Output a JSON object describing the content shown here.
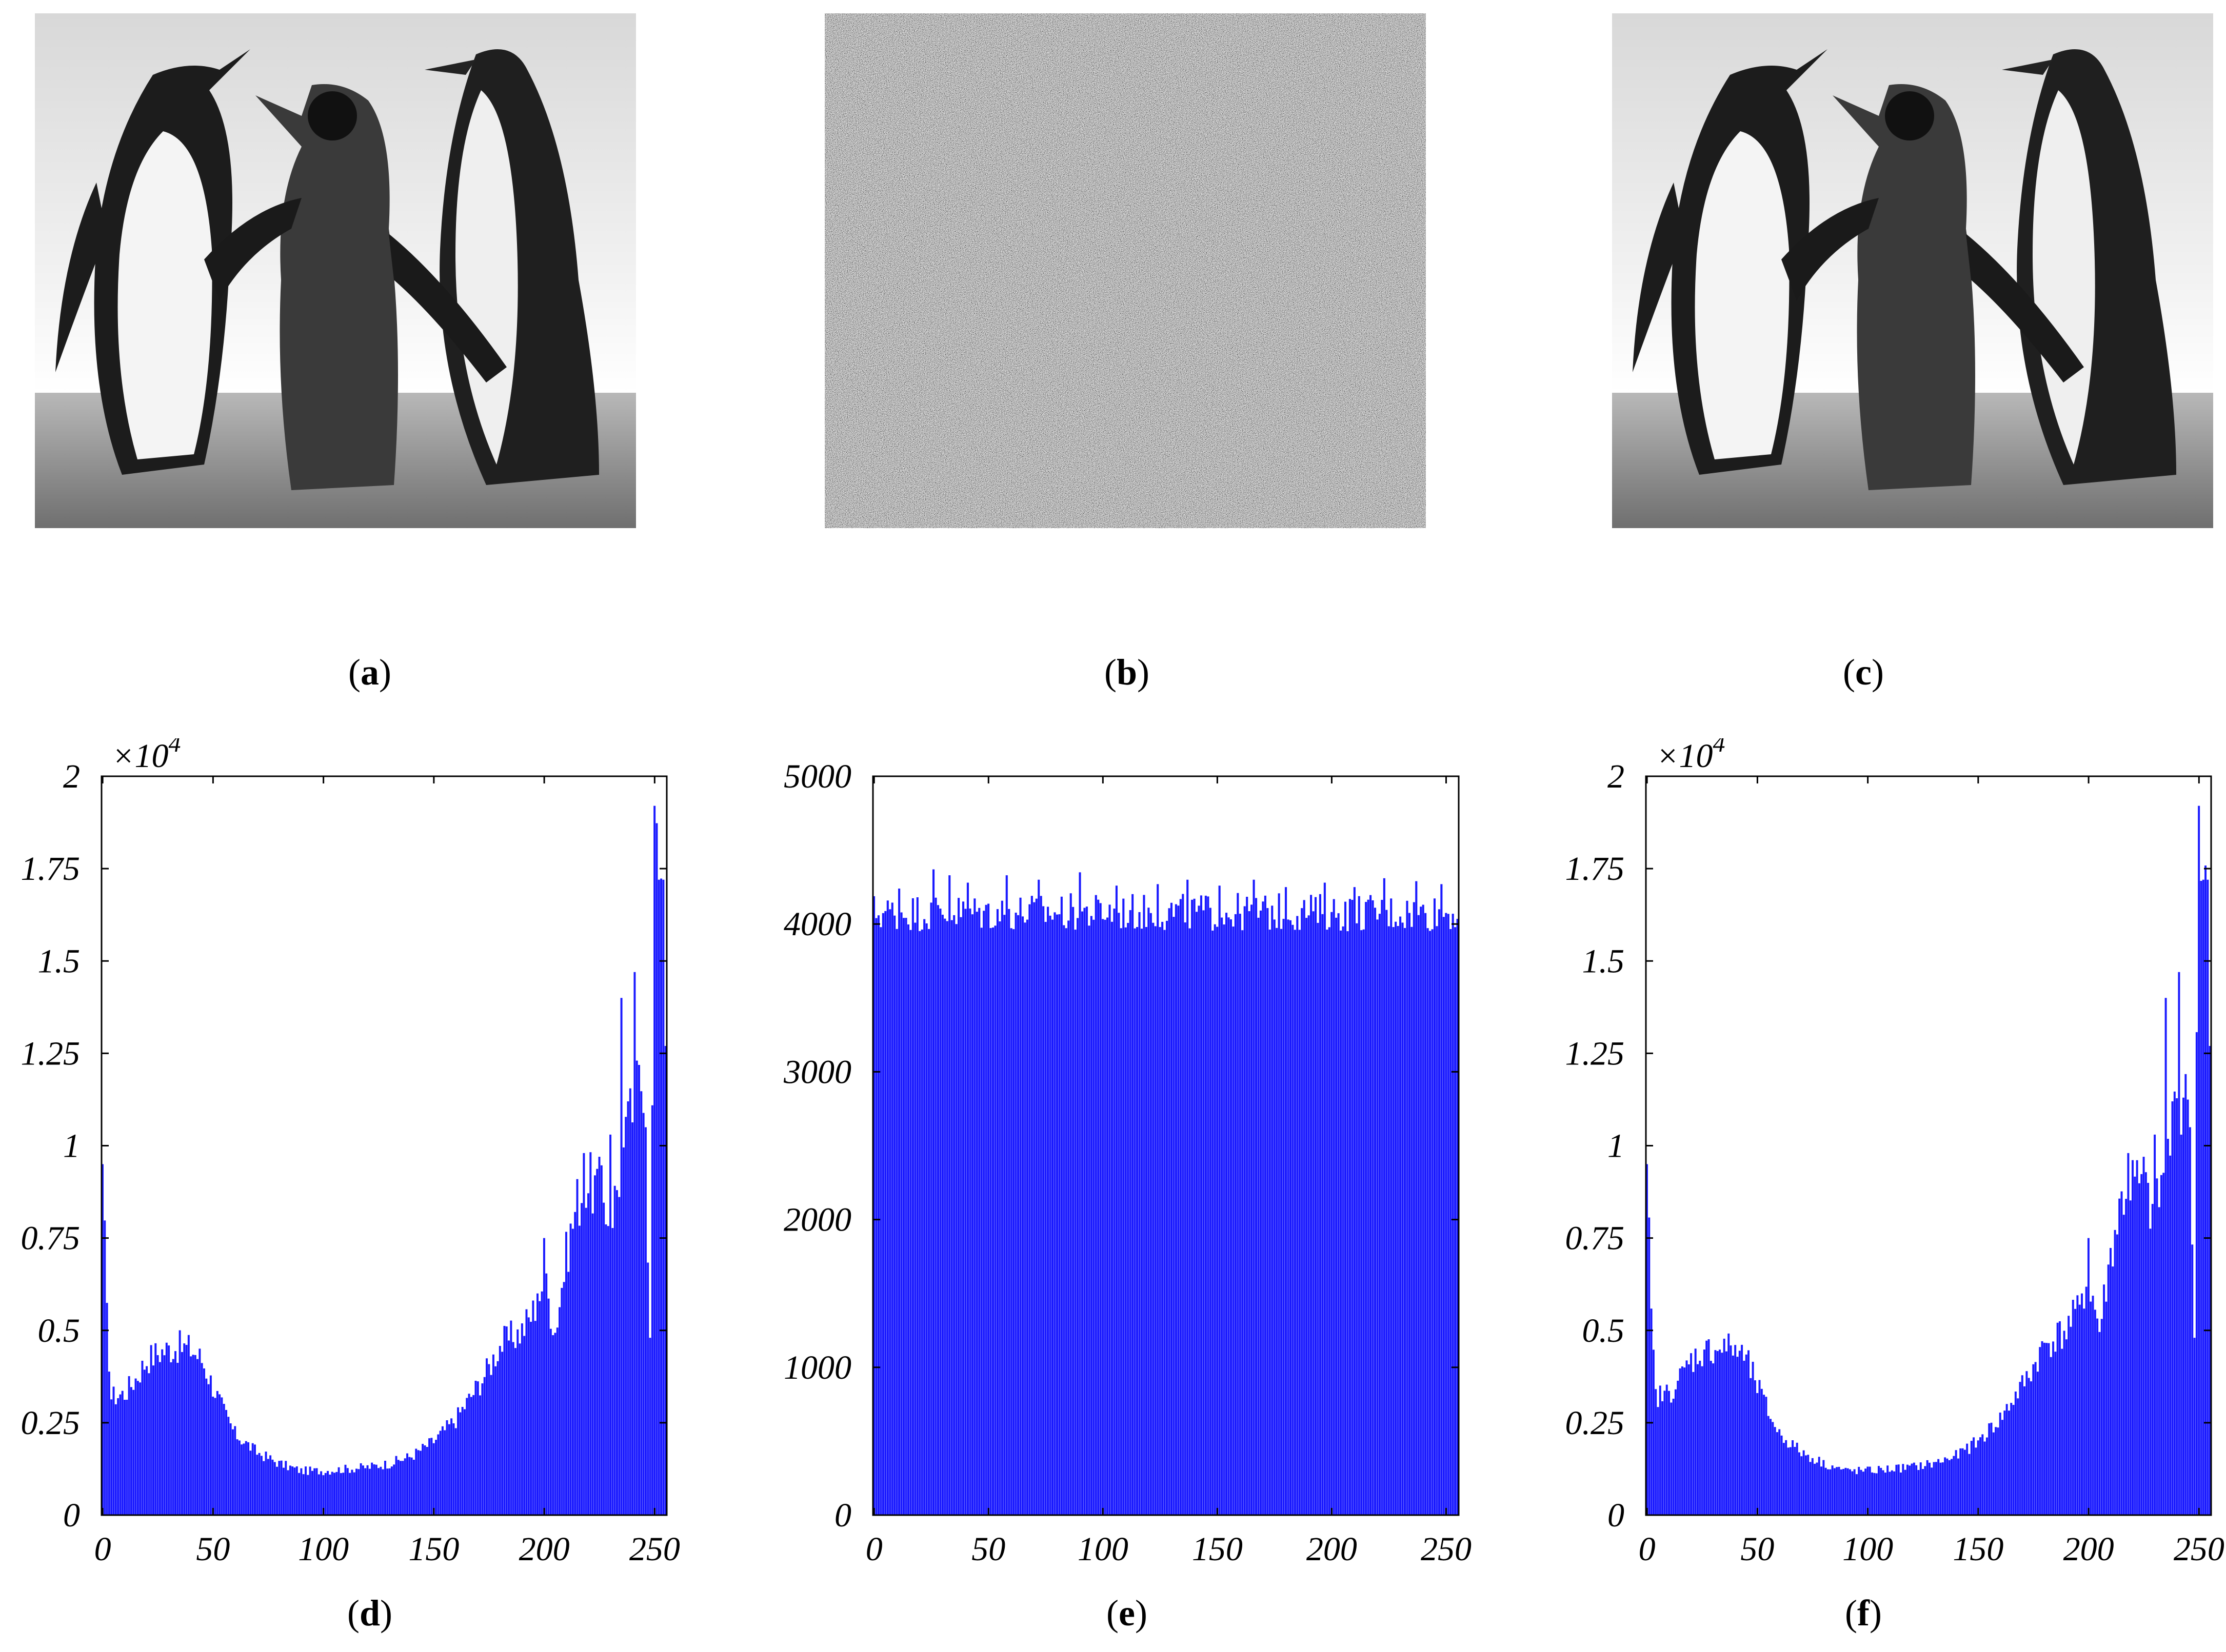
{
  "captions": {
    "a": "a",
    "b": "b",
    "c": "c",
    "d": "d",
    "e": "e",
    "f": "f"
  },
  "images": {
    "a": "grayscale photo of three penguins",
    "b": "encrypted noise image",
    "c": "decrypted grayscale photo of three penguins"
  },
  "colors": {
    "bar": "#1a1aff",
    "axis": "#000000"
  },
  "chart_data": [
    {
      "type": "bar",
      "panel": "d",
      "x_range": [
        0,
        255
      ],
      "ylim": [
        0,
        2
      ],
      "y_multiplier": "×10",
      "y_exponent": "4",
      "x_ticks": [
        "0",
        "50",
        "100",
        "150",
        "200",
        "250"
      ],
      "y_ticks": [
        "0",
        "0.25",
        "0.5",
        "0.75",
        "1",
        "1.25",
        "1.5",
        "1.75",
        "2"
      ],
      "envelope": [
        [
          0,
          0.95
        ],
        [
          2,
          0.53
        ],
        [
          4,
          0.32
        ],
        [
          10,
          0.33
        ],
        [
          15,
          0.37
        ],
        [
          20,
          0.42
        ],
        [
          25,
          0.44
        ],
        [
          30,
          0.45
        ],
        [
          35,
          0.455
        ],
        [
          40,
          0.45
        ],
        [
          45,
          0.42
        ],
        [
          50,
          0.35
        ],
        [
          55,
          0.28
        ],
        [
          60,
          0.22
        ],
        [
          70,
          0.17
        ],
        [
          80,
          0.14
        ],
        [
          90,
          0.12
        ],
        [
          100,
          0.12
        ],
        [
          110,
          0.125
        ],
        [
          120,
          0.13
        ],
        [
          130,
          0.14
        ],
        [
          140,
          0.16
        ],
        [
          150,
          0.2
        ],
        [
          160,
          0.26
        ],
        [
          170,
          0.35
        ],
        [
          175,
          0.4
        ],
        [
          180,
          0.46
        ],
        [
          185,
          0.48
        ],
        [
          190,
          0.5
        ],
        [
          195,
          0.55
        ],
        [
          200,
          0.64
        ],
        [
          205,
          0.5
        ],
        [
          210,
          0.7
        ],
        [
          215,
          0.85
        ],
        [
          220,
          0.9
        ],
        [
          225,
          0.88
        ],
        [
          230,
          0.8
        ],
        [
          235,
          0.95
        ],
        [
          240,
          1.1
        ],
        [
          245,
          1.2
        ],
        [
          248,
          0.5
        ],
        [
          250,
          1.92
        ],
        [
          252,
          1.7
        ],
        [
          254,
          1.72
        ],
        [
          255,
          1.3
        ]
      ],
      "spikes": [
        [
          0,
          0.95
        ],
        [
          197,
          0.6
        ],
        [
          200,
          0.75
        ],
        [
          218,
          0.98
        ],
        [
          225,
          0.97
        ],
        [
          230,
          1.03
        ],
        [
          235,
          1.4
        ],
        [
          238,
          1.12
        ],
        [
          241,
          1.47
        ],
        [
          246,
          1.05
        ],
        [
          248,
          0.48
        ],
        [
          250,
          1.92
        ],
        [
          252,
          1.72
        ],
        [
          254,
          1.72
        ],
        [
          255,
          1.27
        ]
      ]
    },
    {
      "type": "bar",
      "panel": "e",
      "x_range": [
        0,
        255
      ],
      "ylim": [
        0,
        5000
      ],
      "x_ticks": [
        "0",
        "50",
        "100",
        "150",
        "200",
        "250"
      ],
      "y_ticks": [
        "0",
        "1000",
        "2000",
        "3000",
        "4000",
        "5000"
      ],
      "envelope": [
        [
          0,
          4080
        ],
        [
          255,
          4080
        ]
      ],
      "spikes": [
        [
          11,
          4240
        ],
        [
          26,
          4370
        ],
        [
          33,
          4330
        ],
        [
          41,
          4280
        ],
        [
          58,
          4330
        ],
        [
          72,
          4300
        ],
        [
          90,
          4350
        ],
        [
          106,
          4260
        ],
        [
          124,
          4270
        ],
        [
          137,
          4300
        ],
        [
          151,
          4260
        ],
        [
          166,
          4300
        ],
        [
          180,
          4250
        ],
        [
          197,
          4280
        ],
        [
          210,
          4250
        ],
        [
          223,
          4310
        ],
        [
          237,
          4290
        ],
        [
          248,
          4270
        ]
      ]
    },
    {
      "type": "bar",
      "panel": "f",
      "x_range": [
        0,
        255
      ],
      "ylim": [
        0,
        2
      ],
      "y_multiplier": "×10",
      "y_exponent": "4",
      "x_ticks": [
        "0",
        "50",
        "100",
        "150",
        "200",
        "250"
      ],
      "y_ticks": [
        "0",
        "0.25",
        "0.5",
        "0.75",
        "1",
        "1.25",
        "1.5",
        "1.75",
        "2"
      ],
      "envelope": [
        [
          0,
          0.95
        ],
        [
          2,
          0.53
        ],
        [
          4,
          0.32
        ],
        [
          10,
          0.33
        ],
        [
          15,
          0.37
        ],
        [
          20,
          0.42
        ],
        [
          25,
          0.44
        ],
        [
          30,
          0.45
        ],
        [
          35,
          0.455
        ],
        [
          40,
          0.45
        ],
        [
          45,
          0.42
        ],
        [
          50,
          0.35
        ],
        [
          55,
          0.28
        ],
        [
          60,
          0.22
        ],
        [
          70,
          0.17
        ],
        [
          80,
          0.14
        ],
        [
          90,
          0.12
        ],
        [
          100,
          0.12
        ],
        [
          110,
          0.125
        ],
        [
          120,
          0.13
        ],
        [
          130,
          0.14
        ],
        [
          140,
          0.16
        ],
        [
          150,
          0.2
        ],
        [
          160,
          0.26
        ],
        [
          170,
          0.35
        ],
        [
          175,
          0.4
        ],
        [
          180,
          0.46
        ],
        [
          185,
          0.48
        ],
        [
          190,
          0.5
        ],
        [
          195,
          0.55
        ],
        [
          200,
          0.64
        ],
        [
          205,
          0.5
        ],
        [
          210,
          0.7
        ],
        [
          215,
          0.85
        ],
        [
          220,
          0.9
        ],
        [
          225,
          0.88
        ],
        [
          230,
          0.8
        ],
        [
          235,
          0.95
        ],
        [
          240,
          1.1
        ],
        [
          245,
          1.2
        ],
        [
          248,
          0.5
        ],
        [
          250,
          1.92
        ],
        [
          252,
          1.7
        ],
        [
          254,
          1.72
        ],
        [
          255,
          1.3
        ]
      ],
      "spikes": [
        [
          0,
          0.95
        ],
        [
          197,
          0.6
        ],
        [
          200,
          0.75
        ],
        [
          218,
          0.98
        ],
        [
          225,
          0.97
        ],
        [
          230,
          1.03
        ],
        [
          235,
          1.4
        ],
        [
          238,
          1.12
        ],
        [
          241,
          1.47
        ],
        [
          246,
          1.05
        ],
        [
          248,
          0.48
        ],
        [
          250,
          1.92
        ],
        [
          252,
          1.72
        ],
        [
          254,
          1.72
        ],
        [
          255,
          1.27
        ]
      ]
    }
  ]
}
